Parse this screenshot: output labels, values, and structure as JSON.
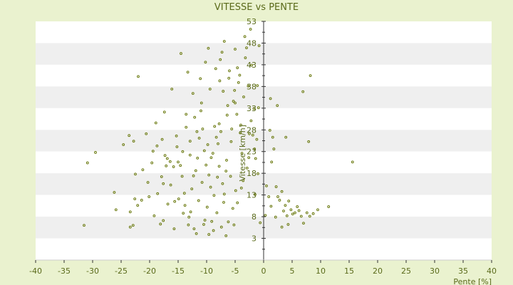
{
  "chart_data": {
    "type": "scatter",
    "title": "VITESSE vs PENTE",
    "xlabel": "Pente [%]",
    "ylabel": "Vitesse [km/h]",
    "xlim": [
      -40,
      40
    ],
    "ylim": [
      -2,
      53
    ],
    "xticks": [
      "-40",
      "-35",
      "-30",
      "-25",
      "-20",
      "-15",
      "-10",
      "-5",
      "0",
      "5",
      "10",
      "15",
      "20",
      "25",
      "30",
      "35",
      "40"
    ],
    "yticks": [
      "3",
      "8",
      "13",
      "18",
      "23",
      "28",
      "33",
      "38",
      "43",
      "48",
      "53"
    ],
    "ytick_values": [
      3,
      8,
      13,
      18,
      23,
      28,
      33,
      38,
      43,
      48,
      53
    ],
    "grid": "alternating horizontal bands",
    "colors": {
      "background": "#eaf2cf",
      "plot": "#ffffff",
      "band": "#efefef",
      "point": "#6b7a10",
      "axis": "#333333",
      "text": "#5a6a1a"
    },
    "points": [
      [
        -31.5,
        6
      ],
      [
        -30.9,
        20.4
      ],
      [
        -29.5,
        22.8
      ],
      [
        -26.2,
        13.6
      ],
      [
        -25.9,
        9.6
      ],
      [
        -24.6,
        24.6
      ],
      [
        -23.4,
        5.6
      ],
      [
        -22.9,
        6
      ],
      [
        -22.8,
        25.4
      ],
      [
        -22.5,
        17.8
      ],
      [
        -22.1,
        10.6
      ],
      [
        -21.4,
        11.8
      ],
      [
        -20.1,
        12.6
      ],
      [
        -19.6,
        20.4
      ],
      [
        -18.6,
        13.3
      ],
      [
        -18.1,
        6.3
      ],
      [
        -17.8,
        25.8
      ],
      [
        -17.6,
        15.6
      ],
      [
        -17.1,
        19.7
      ],
      [
        -16.4,
        20.7
      ],
      [
        -15.3,
        26.6
      ],
      [
        -15.0,
        20.6
      ],
      [
        -14.6,
        19.8
      ],
      [
        -14.3,
        17.3
      ],
      [
        -13.9,
        13.4
      ],
      [
        -13.6,
        31.6
      ],
      [
        -12.9,
        22.2
      ],
      [
        -12.6,
        14.4
      ],
      [
        -12.3,
        17.4
      ],
      [
        -11.9,
        18.6
      ],
      [
        -11.6,
        21.5
      ],
      [
        -11.3,
        26.1
      ],
      [
        -11.0,
        32.4
      ],
      [
        -10.7,
        28.2
      ],
      [
        -10.4,
        23.2
      ],
      [
        -10.1,
        19.9
      ],
      [
        -9.8,
        24.6
      ],
      [
        -9.6,
        17.6
      ],
      [
        -9.2,
        21.6
      ],
      [
        -8.9,
        22.6
      ],
      [
        -8.6,
        28.8
      ],
      [
        -8.3,
        26.3
      ],
      [
        -8.0,
        24.8
      ],
      [
        -7.8,
        19.6
      ],
      [
        -7.5,
        27.6
      ],
      [
        -7.2,
        15.6
      ],
      [
        -6.9,
        13.2
      ],
      [
        -6.6,
        18.5
      ],
      [
        -6.3,
        33.6
      ],
      [
        -6.0,
        41.6
      ],
      [
        -5.6,
        28.2
      ],
      [
        -5.3,
        34.6
      ],
      [
        -5.0,
        46.6
      ],
      [
        -4.7,
        31.6
      ],
      [
        -4.4,
        38.9
      ],
      [
        -4.1,
        27.3
      ],
      [
        -3.8,
        22.6
      ],
      [
        -3.5,
        35.6
      ],
      [
        -3.2,
        44.6
      ],
      [
        -2.6,
        21.6
      ],
      [
        -2.2,
        30.1
      ],
      [
        -1.9,
        26.8
      ],
      [
        -1.6,
        23.6
      ],
      [
        -8.2,
        8.9
      ],
      [
        -9.1,
        6.9
      ],
      [
        -10.5,
        6.2
      ],
      [
        -12.2,
        5.2
      ],
      [
        -14.1,
        8.8
      ],
      [
        -15.6,
        11.5
      ],
      [
        -6.6,
        3.6
      ],
      [
        -11.8,
        4.1
      ],
      [
        -9.6,
        3.9
      ],
      [
        -16.8,
        10.9
      ],
      [
        -13.1,
        7.9
      ],
      [
        -7.6,
        44.2
      ],
      [
        -7.1,
        36.9
      ],
      [
        -5.7,
        25.3
      ],
      [
        -3.9,
        14.6
      ],
      [
        1.4,
        20.6
      ],
      [
        1.6,
        26.3
      ],
      [
        1.8,
        23.6
      ],
      [
        2.2,
        14.9
      ],
      [
        2.5,
        12.6
      ],
      [
        2.8,
        11.8
      ],
      [
        3.2,
        13.8
      ],
      [
        3.5,
        9.3
      ],
      [
        3.8,
        10.6
      ],
      [
        4.1,
        8.2
      ],
      [
        4.4,
        11.6
      ],
      [
        4.8,
        9.6
      ],
      [
        5.1,
        8.6
      ],
      [
        5.5,
        8.9
      ],
      [
        5.9,
        10.3
      ],
      [
        6.2,
        9.4
      ],
      [
        6.6,
        8.1
      ],
      [
        7.0,
        6.5
      ],
      [
        7.6,
        8.9
      ],
      [
        8.1,
        8.1
      ],
      [
        8.7,
        8.7
      ],
      [
        9.5,
        9.6
      ],
      [
        11.4,
        10.3
      ],
      [
        15.6,
        20.6
      ],
      [
        8.2,
        40.5
      ],
      [
        7.9,
        25.3
      ],
      [
        6.9,
        36.8
      ],
      [
        3.9,
        26.3
      ],
      [
        2.4,
        33.6
      ],
      [
        1.1,
        27.9
      ],
      [
        1.2,
        35.2
      ],
      [
        0.9,
        12.6
      ],
      [
        0.5,
        15.1
      ],
      [
        0.3,
        8.3
      ],
      [
        1.3,
        10.4
      ],
      [
        2.1,
        7.9
      ],
      [
        3.2,
        5.6
      ],
      [
        4.3,
        6.2
      ],
      [
        -1.1,
        38.2
      ],
      [
        -1.2,
        25.8
      ],
      [
        -0.8,
        47.4
      ],
      [
        -1.4,
        21.4
      ],
      [
        -2.1,
        42.9
      ],
      [
        -0.9,
        33.1
      ],
      [
        -3.3,
        49.5
      ],
      [
        -2.3,
        51.2
      ],
      [
        -4.6,
        42.3
      ],
      [
        -6.9,
        48.4
      ],
      [
        -7.7,
        39.3
      ],
      [
        -9.7,
        46.8
      ],
      [
        -10.2,
        43.6
      ],
      [
        -11.1,
        39.8
      ],
      [
        -12.4,
        36.4
      ],
      [
        -13.3,
        41.3
      ],
      [
        -14.5,
        45.6
      ],
      [
        -16.1,
        37.4
      ],
      [
        -17.4,
        32.1
      ],
      [
        -18.9,
        29.6
      ],
      [
        -20.6,
        27.1
      ],
      [
        -22.0,
        40.3
      ],
      [
        -23.6,
        26.7
      ],
      [
        -19.4,
        23.1
      ],
      [
        -17.9,
        17.2
      ],
      [
        -16.3,
        15.3
      ],
      [
        -15.2,
        24.1
      ],
      [
        -13.6,
        28.6
      ],
      [
        -12.1,
        30.9
      ],
      [
        -10.9,
        34.2
      ],
      [
        -9.4,
        37.4
      ],
      [
        -8.4,
        42.1
      ],
      [
        -7.3,
        45.9
      ],
      [
        -6.1,
        39.9
      ],
      [
        -5.1,
        37.1
      ],
      [
        -4.2,
        40.6
      ],
      [
        -3.0,
        46.9
      ],
      [
        -2.7,
        38.1
      ],
      [
        -1.7,
        32.9
      ],
      [
        -6.5,
        21.0
      ],
      [
        -5.8,
        17.3
      ],
      [
        -4.9,
        14.0
      ],
      [
        -8.7,
        12.9
      ],
      [
        -9.9,
        10.2
      ],
      [
        -11.4,
        11.7
      ],
      [
        -12.8,
        9.1
      ],
      [
        -13.8,
        10.6
      ],
      [
        -14.9,
        12.1
      ],
      [
        -6.2,
        6.8
      ],
      [
        -5.4,
        9.9
      ],
      [
        -4.6,
        11.2
      ],
      [
        -3.6,
        16.3
      ],
      [
        -2.9,
        19.2
      ],
      [
        -1.5,
        13.1
      ],
      [
        -1.0,
        17.9
      ],
      [
        -0.6,
        6.6
      ],
      [
        -17.3,
        22.1
      ],
      [
        -18.7,
        24.3
      ],
      [
        -21.2,
        18.8
      ],
      [
        -10.8,
        15.9
      ],
      [
        -9.3,
        14.8
      ],
      [
        -8.1,
        17.1
      ],
      [
        -7.0,
        11.3
      ],
      [
        -7.8,
        29.4
      ],
      [
        -6.4,
        31.4
      ],
      [
        -5.0,
        34.2
      ],
      [
        -4.0,
        29.1
      ],
      [
        -2.5,
        27.1
      ],
      [
        -11.7,
        27.6
      ],
      [
        -12.9,
        25.4
      ],
      [
        -14.2,
        23.0
      ],
      [
        -15.8,
        19.5
      ],
      [
        -16.9,
        21.4
      ],
      [
        -20.3,
        15.9
      ],
      [
        -22.6,
        12.1
      ],
      [
        -23.4,
        9.1
      ],
      [
        -19.2,
        8.2
      ],
      [
        -17.6,
        7.1
      ],
      [
        -15.7,
        5.2
      ],
      [
        -13.2,
        6.1
      ],
      [
        -10.3,
        7.2
      ],
      [
        -8.8,
        4.8
      ],
      [
        -7.4,
        5.6
      ],
      [
        -5.2,
        6.1
      ]
    ]
  }
}
